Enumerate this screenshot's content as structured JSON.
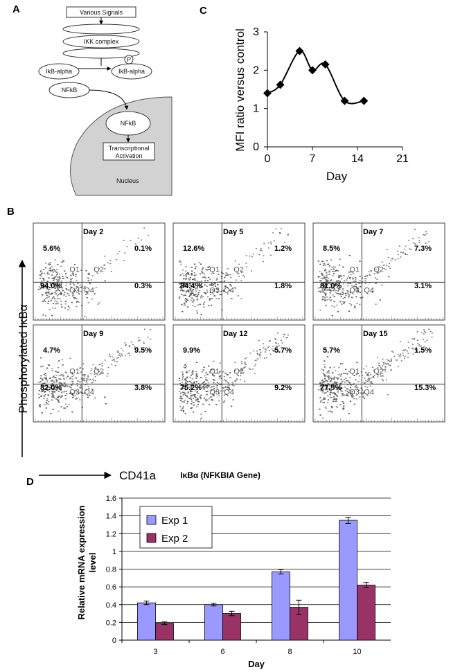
{
  "panels": {
    "a": "A",
    "b": "B",
    "c": "C",
    "d": "D"
  },
  "pathway": {
    "signals": "Various Signals",
    "ikk": "IKK complex",
    "ikb": "IkB-alpha",
    "ikb_p": "IkB-alpha",
    "phospho": "P",
    "nfkb": "NFkB",
    "nfkb_nucleus": "NFkB",
    "activation_line1": "Transcriptional",
    "activation_line2": "Activation",
    "nucleus": "Nucleus"
  },
  "flow": {
    "y_axis_label": "Phosphorylated IκBα",
    "x_axis_label": "CD41a",
    "quadrant_names": [
      "Q1",
      "Q2",
      "Q3",
      "Q4"
    ],
    "plots": [
      {
        "day": "Day 2",
        "q1": "5.6%",
        "q2": "0.1%",
        "q3": "94.0%",
        "q4": "0.3%"
      },
      {
        "day": "Day 5",
        "q1": "12.6%",
        "q2": "1.2%",
        "q3": "84.4%",
        "q4": "1.8%"
      },
      {
        "day": "Day 7",
        "q1": "8.5%",
        "q2": "7.3%",
        "q3": "81.0%",
        "q4": "3.1%"
      },
      {
        "day": "Day 9",
        "q1": "4.7%",
        "q2": "9.5%",
        "q3": "82.0%",
        "q4": "3.8%"
      },
      {
        "day": "Day 12",
        "q1": "9.9%",
        "q2": "5.7%",
        "q3": "75.2%",
        "q4": "9.2%"
      },
      {
        "day": "Day 15",
        "q1": "5.7%",
        "q2": "1.5%",
        "q3": "77.5%",
        "q4": "15.3%"
      }
    ]
  },
  "chart_data": [
    {
      "type": "line",
      "panel": "C",
      "title": "",
      "xlabel": "Day",
      "ylabel": "MFI ratio versus control",
      "xlim": [
        0,
        21
      ],
      "ylim": [
        0,
        3
      ],
      "xticks": [
        "0",
        "7",
        "14",
        "21"
      ],
      "yticks": [
        "0",
        "1",
        "2",
        "3"
      ],
      "grid": false,
      "smooth": true,
      "series": [
        {
          "x": [
            0,
            2,
            5,
            7,
            9,
            12,
            15
          ],
          "y": [
            1.4,
            1.62,
            2.5,
            2.0,
            2.15,
            1.2,
            1.2
          ]
        }
      ]
    },
    {
      "type": "bar",
      "panel": "D",
      "title": "IκBα  (NFKBIA Gene)",
      "xlabel": "Day",
      "ylabel": "Relative mRNA expression level",
      "ylim": [
        0,
        1.6
      ],
      "yticks": [
        "0",
        "0.2",
        "0.4",
        "0.6",
        "0.8",
        "1",
        "1.2",
        "1.4",
        "1.6"
      ],
      "grid": true,
      "legend": "top-left",
      "categories": [
        "3",
        "6",
        "8",
        "10"
      ],
      "series": [
        {
          "name": "Exp 1",
          "color": "#9999ff",
          "values": [
            0.42,
            0.4,
            0.77,
            1.35
          ],
          "errors": [
            0.02,
            0.015,
            0.025,
            0.035
          ]
        },
        {
          "name": "Exp 2",
          "color": "#993366",
          "values": [
            0.19,
            0.3,
            0.37,
            0.62
          ],
          "errors": [
            0.015,
            0.025,
            0.08,
            0.03
          ]
        }
      ]
    }
  ]
}
